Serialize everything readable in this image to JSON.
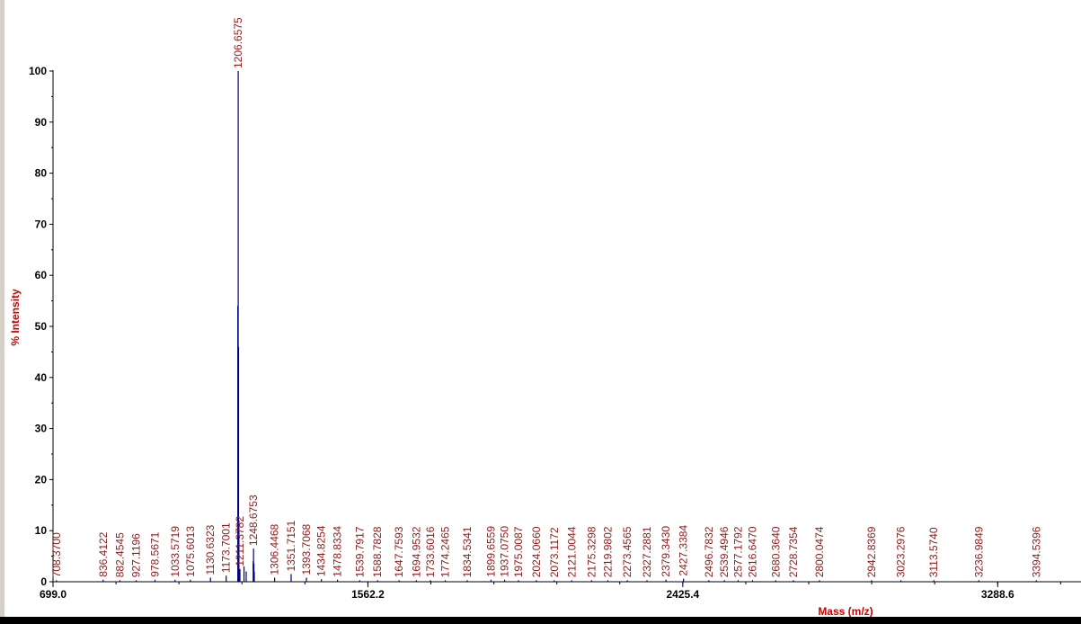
{
  "chart_data": {
    "type": "line",
    "title": "",
    "xlabel": "Mass (m/z)",
    "ylabel": "% Intensity",
    "xlim": [
      699.0,
      3517.0
    ],
    "ylim": [
      0,
      100
    ],
    "x_ticks": [
      "699.0",
      "1562.2",
      "2425.4",
      "3288.6"
    ],
    "y_ticks": [
      "0",
      "10",
      "20",
      "30",
      "40",
      "50",
      "60",
      "70",
      "80",
      "90",
      "100"
    ],
    "grid": false,
    "colors": {
      "trace": "#000080",
      "labels": "#8b1a1a",
      "axis_titles": "#cc0000"
    },
    "peaks": [
      {
        "mz": 708.37,
        "label": "708.3700",
        "intensity": 0.3
      },
      {
        "mz": 836.4122,
        "label": "836.4122",
        "intensity": 0.4
      },
      {
        "mz": 882.4545,
        "label": "882.4545",
        "intensity": 0.3
      },
      {
        "mz": 927.1196,
        "label": "927.1196",
        "intensity": 0.3
      },
      {
        "mz": 978.5671,
        "label": "978.5671",
        "intensity": 0.4
      },
      {
        "mz": 1033.5719,
        "label": "1033.5719",
        "intensity": 0.4
      },
      {
        "mz": 1075.6013,
        "label": "1075.6013",
        "intensity": 0.4
      },
      {
        "mz": 1130.6323,
        "label": "1130.6323",
        "intensity": 0.8
      },
      {
        "mz": 1173.7001,
        "label": "1173.7001",
        "intensity": 1.2
      },
      {
        "mz": 1206.6575,
        "label": "1206.6575",
        "intensity": 100.0
      },
      {
        "mz": 1211.3782,
        "label": "1211.3782",
        "intensity": 2.5
      },
      {
        "mz": 1248.6753,
        "label": "1248.6753",
        "intensity": 6.5
      },
      {
        "mz": 1306.4468,
        "label": "1306.4468",
        "intensity": 0.8
      },
      {
        "mz": 1351.7151,
        "label": "1351.7151",
        "intensity": 1.5
      },
      {
        "mz": 1393.7068,
        "label": "1393.7068",
        "intensity": 0.8
      },
      {
        "mz": 1434.8254,
        "label": "1434.8254",
        "intensity": 0.5
      },
      {
        "mz": 1478.8334,
        "label": "1478.8334",
        "intensity": 0.4
      },
      {
        "mz": 1539.7917,
        "label": "1539.7917",
        "intensity": 0.3
      },
      {
        "mz": 1588.7828,
        "label": "1588.7828",
        "intensity": 0.3
      },
      {
        "mz": 1647.7593,
        "label": "1647.7593",
        "intensity": 0.3
      },
      {
        "mz": 1694.9532,
        "label": "1694.9532",
        "intensity": 0.3
      },
      {
        "mz": 1733.6016,
        "label": "1733.6016",
        "intensity": 0.3
      },
      {
        "mz": 1774.2465,
        "label": "1774.2465",
        "intensity": 0.3
      },
      {
        "mz": 1834.5341,
        "label": "1834.5341",
        "intensity": 0.3
      },
      {
        "mz": 1899.6559,
        "label": "1899.6559",
        "intensity": 0.4
      },
      {
        "mz": 1937.075,
        "label": "1937.0750",
        "intensity": 0.4
      },
      {
        "mz": 1975.0087,
        "label": "1975.0087",
        "intensity": 0.3
      },
      {
        "mz": 2024.066,
        "label": "2024.0660",
        "intensity": 0.3
      },
      {
        "mz": 2073.1172,
        "label": "2073.1172",
        "intensity": 0.3
      },
      {
        "mz": 2121.0044,
        "label": "2121.0044",
        "intensity": 0.3
      },
      {
        "mz": 2175.3298,
        "label": "2175.3298",
        "intensity": 0.3
      },
      {
        "mz": 2219.9802,
        "label": "2219.9802",
        "intensity": 0.3
      },
      {
        "mz": 2273.4565,
        "label": "2273.4565",
        "intensity": 0.3
      },
      {
        "mz": 2327.2881,
        "label": "2327.2881",
        "intensity": 0.3
      },
      {
        "mz": 2379.343,
        "label": "2379.3430",
        "intensity": 0.4
      },
      {
        "mz": 2427.3384,
        "label": "2427.3384",
        "intensity": 0.6
      },
      {
        "mz": 2496.7832,
        "label": "2496.7832",
        "intensity": 0.3
      },
      {
        "mz": 2539.4946,
        "label": "2539.4946",
        "intensity": 0.3
      },
      {
        "mz": 2577.1792,
        "label": "2577.1792",
        "intensity": 0.3
      },
      {
        "mz": 2616.647,
        "label": "2616.6470",
        "intensity": 0.3
      },
      {
        "mz": 2680.364,
        "label": "2680.3640",
        "intensity": 0.3
      },
      {
        "mz": 2728.7354,
        "label": "2728.7354",
        "intensity": 0.3
      },
      {
        "mz": 2800.0474,
        "label": "2800.0474",
        "intensity": 0.3
      },
      {
        "mz": 2942.8369,
        "label": "2942.8369",
        "intensity": 0.3
      },
      {
        "mz": 3023.2976,
        "label": "3023.2976",
        "intensity": 0.3
      },
      {
        "mz": 3113.574,
        "label": "3113.5740",
        "intensity": 0.3
      },
      {
        "mz": 3236.9849,
        "label": "3236.9849",
        "intensity": 0.3
      },
      {
        "mz": 3394.5396,
        "label": "3394.5396",
        "intensity": 0.3
      }
    ],
    "extra_trace_points": [
      {
        "mz": 1205.6,
        "intensity": 54.0
      },
      {
        "mz": 1207.6,
        "intensity": 46.0
      },
      {
        "mz": 1208.6,
        "intensity": 12.0
      },
      {
        "mz": 1222.6,
        "intensity": 3.0
      },
      {
        "mz": 1228.6,
        "intensity": 2.0
      },
      {
        "mz": 1247.7,
        "intensity": 4.0
      },
      {
        "mz": 1249.7,
        "intensity": 3.5
      },
      {
        "mz": 1250.7,
        "intensity": 2.0
      }
    ]
  }
}
